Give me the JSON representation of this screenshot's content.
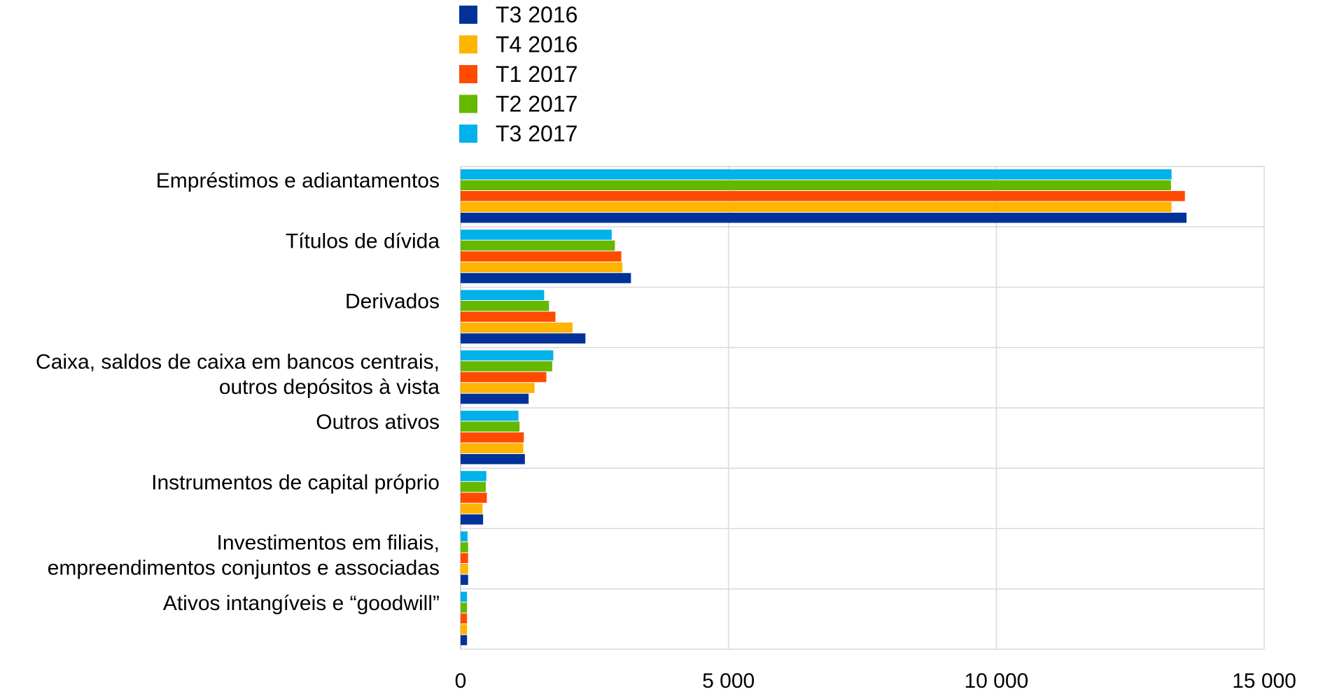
{
  "chart_data": {
    "type": "bar",
    "orientation": "horizontal",
    "categories": [
      [
        "Empréstimos e adiantamentos"
      ],
      [
        "Títulos de dívida"
      ],
      [
        "Derivados"
      ],
      [
        "Caixa, saldos de caixa em bancos centrais,",
        "outros depósitos à vista"
      ],
      [
        "Outros ativos"
      ],
      [
        "Instrumentos de capital próprio"
      ],
      [
        "Investimentos em filiais,",
        "empreendimentos conjuntos e associadas"
      ],
      [
        "Ativos intangíveis e “goodwill”"
      ]
    ],
    "series": [
      {
        "name": "T3 2016",
        "color": "#003299",
        "values": [
          13550,
          3180,
          2330,
          1270,
          1200,
          420,
          140,
          120
        ]
      },
      {
        "name": "T4 2016",
        "color": "#FFB400",
        "values": [
          13270,
          3020,
          2090,
          1380,
          1170,
          410,
          140,
          120
        ]
      },
      {
        "name": "T1 2017",
        "color": "#FF4B00",
        "values": [
          13520,
          3000,
          1770,
          1600,
          1180,
          490,
          140,
          120
        ]
      },
      {
        "name": "T2 2017",
        "color": "#65B800",
        "values": [
          13260,
          2880,
          1650,
          1710,
          1100,
          470,
          140,
          120
        ]
      },
      {
        "name": "T3 2017",
        "color": "#00B1EA",
        "values": [
          13270,
          2820,
          1560,
          1730,
          1080,
          480,
          130,
          120
        ]
      }
    ],
    "xlim": [
      0,
      15000
    ],
    "xticks": [
      0,
      5000,
      10000,
      15000
    ],
    "xtick_labels": [
      "0",
      "5 000",
      "10 000",
      "15 000"
    ],
    "grid": {
      "vertical": true,
      "horizontal_separators": true,
      "color": "#d9d9d9"
    },
    "legend": {
      "position": "top",
      "layout": "vertical"
    },
    "title": "",
    "xlabel": "",
    "ylabel": ""
  }
}
